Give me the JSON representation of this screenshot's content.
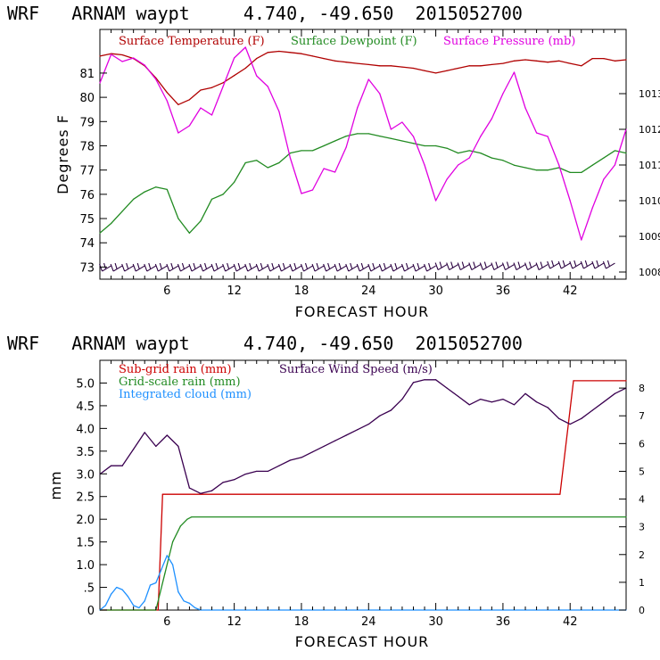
{
  "chart_data": [
    {
      "type": "line",
      "title": "WRF   ARNAM waypt     4.740, -49.650  2015052700",
      "xlabel": "FORECAST HOUR",
      "ylabel": "Degrees F",
      "xlim": [
        0,
        47
      ],
      "xticks": [
        6,
        12,
        18,
        24,
        30,
        36,
        42
      ],
      "ylim": [
        72.5,
        82.8
      ],
      "yticks": [
        73,
        74,
        75,
        76,
        77,
        78,
        79,
        80,
        81
      ],
      "y2label": "Surface Pressure (mb)",
      "y2lim": [
        1007.8,
        1014.8
      ],
      "y2ticks": [
        1008,
        1009,
        1010,
        1011,
        1012,
        1013
      ],
      "legend": [
        "Surface Temperature (F)",
        "Surface Dewpoint (F)",
        "Surface Pressure (mb)"
      ],
      "series": [
        {
          "name": "Surface Temperature (F)",
          "color": "#b00000",
          "axis": "left",
          "x": [
            0,
            1,
            2,
            3,
            4,
            5,
            6,
            7,
            8,
            9,
            10,
            11,
            12,
            13,
            14,
            15,
            16,
            17,
            18,
            19,
            20,
            21,
            22,
            23,
            24,
            25,
            26,
            27,
            28,
            29,
            30,
            31,
            32,
            33,
            34,
            35,
            36,
            37,
            38,
            39,
            40,
            41,
            42,
            43,
            44,
            45,
            46,
            47
          ],
          "y": [
            81.7,
            81.8,
            81.75,
            81.6,
            81.3,
            80.8,
            80.2,
            79.7,
            79.9,
            80.3,
            80.4,
            80.6,
            80.9,
            81.2,
            81.6,
            81.85,
            81.9,
            81.85,
            81.8,
            81.7,
            81.6,
            81.5,
            81.45,
            81.4,
            81.35,
            81.3,
            81.3,
            81.25,
            81.2,
            81.1,
            81.0,
            81.1,
            81.2,
            81.3,
            81.3,
            81.35,
            81.4,
            81.5,
            81.55,
            81.5,
            81.45,
            81.5,
            81.4,
            81.3,
            81.6,
            81.6,
            81.5,
            81.55
          ]
        },
        {
          "name": "Surface Dewpoint (F)",
          "color": "#228b22",
          "axis": "left",
          "x": [
            0,
            1,
            2,
            3,
            4,
            5,
            6,
            7,
            8,
            9,
            10,
            11,
            12,
            13,
            14,
            15,
            16,
            17,
            18,
            19,
            20,
            21,
            22,
            23,
            24,
            25,
            26,
            27,
            28,
            29,
            30,
            31,
            32,
            33,
            34,
            35,
            36,
            37,
            38,
            39,
            40,
            41,
            42,
            43,
            44,
            45,
            46,
            47
          ],
          "y": [
            74.4,
            74.8,
            75.3,
            75.8,
            76.1,
            76.3,
            76.2,
            75.0,
            74.4,
            74.9,
            75.8,
            76.0,
            76.5,
            77.3,
            77.4,
            77.1,
            77.3,
            77.7,
            77.8,
            77.8,
            78.0,
            78.2,
            78.4,
            78.5,
            78.5,
            78.4,
            78.3,
            78.2,
            78.1,
            78.0,
            78.0,
            77.9,
            77.7,
            77.8,
            77.7,
            77.5,
            77.4,
            77.2,
            77.1,
            77.0,
            77.0,
            77.1,
            76.9,
            76.9,
            77.2,
            77.5,
            77.8,
            77.7
          ]
        },
        {
          "name": "Surface Pressure (mb)",
          "color": "#e000e0",
          "axis": "right",
          "x": [
            0,
            1,
            2,
            3,
            4,
            5,
            6,
            7,
            8,
            9,
            10,
            11,
            12,
            13,
            14,
            15,
            16,
            17,
            18,
            19,
            20,
            21,
            22,
            23,
            24,
            25,
            26,
            27,
            28,
            29,
            30,
            31,
            32,
            33,
            34,
            35,
            36,
            37,
            38,
            39,
            40,
            41,
            42,
            43,
            44,
            45,
            46,
            47
          ],
          "y": [
            1013.3,
            1014.1,
            1013.9,
            1014.0,
            1013.8,
            1013.4,
            1012.8,
            1011.9,
            1012.1,
            1012.6,
            1012.4,
            1013.2,
            1014.0,
            1014.3,
            1013.5,
            1013.2,
            1012.5,
            1011.2,
            1010.2,
            1010.3,
            1010.9,
            1010.8,
            1011.5,
            1012.6,
            1013.4,
            1013.0,
            1012.0,
            1012.2,
            1011.8,
            1011.0,
            1010.0,
            1010.6,
            1011.0,
            1011.2,
            1011.8,
            1012.3,
            1013.0,
            1013.6,
            1012.6,
            1011.9,
            1011.8,
            1011.0,
            1010.0,
            1008.9,
            1009.8,
            1010.6,
            1011.0,
            1012.0
          ]
        }
      ],
      "wind_barbs": "row of wind barbs along the bottom of the panel"
    },
    {
      "type": "line",
      "title": "WRF   ARNAM waypt     4.740, -49.650  2015052700",
      "xlabel": "FORECAST HOUR",
      "ylabel": "mm",
      "xlim": [
        0,
        47
      ],
      "xticks": [
        6,
        12,
        18,
        24,
        30,
        36,
        42
      ],
      "ylim": [
        0,
        5.5
      ],
      "yticks": [
        0,
        0.5,
        1.0,
        1.5,
        2.0,
        2.5,
        3.0,
        3.5,
        4.0,
        4.5,
        5.0
      ],
      "ytick_labels": [
        "0",
        ".5",
        "1.0",
        "1.5",
        "2.0",
        "2.5",
        "3.0",
        "3.5",
        "4.0",
        "4.5",
        "5.0"
      ],
      "y2label": "Surface Wind Speed (m/s)",
      "y2lim": [
        0,
        9
      ],
      "y2ticks": [
        0,
        1,
        2,
        3,
        4,
        5,
        6,
        7,
        8
      ],
      "legend": [
        "Sub-grid rain (mm)",
        "Grid-scale rain (mm)",
        "Integrated cloud (mm)",
        "Surface Wind Speed (m/s)"
      ],
      "series": [
        {
          "name": "Sub-grid rain (mm)",
          "color": "#cc0000",
          "axis": "left",
          "x": [
            0,
            5.2,
            5.6,
            41.1,
            42.3,
            47
          ],
          "y": [
            0,
            0,
            2.55,
            2.55,
            5.05,
            5.05
          ]
        },
        {
          "name": "Grid-scale rain (mm)",
          "color": "#228b22",
          "axis": "left",
          "x": [
            0,
            5.0,
            5.8,
            6.5,
            7.2,
            7.8,
            8.2,
            47
          ],
          "y": [
            0,
            0,
            0.8,
            1.5,
            1.85,
            2.0,
            2.05,
            2.05
          ]
        },
        {
          "name": "Integrated cloud (mm)",
          "color": "#1e90ff",
          "axis": "left",
          "x": [
            0,
            0.5,
            1.0,
            1.5,
            2.0,
            2.5,
            3.0,
            3.5,
            4.0,
            4.5,
            5.0,
            5.5,
            6.0,
            6.5,
            7.0,
            7.5,
            8.0,
            8.5,
            9.0,
            47
          ],
          "y": [
            0,
            0.1,
            0.35,
            0.5,
            0.45,
            0.3,
            0.1,
            0.05,
            0.2,
            0.55,
            0.6,
            0.9,
            1.2,
            1.0,
            0.4,
            0.2,
            0.15,
            0.05,
            0,
            0
          ]
        },
        {
          "name": "Surface Wind Speed (m/s)",
          "color": "#3a0050",
          "axis": "right",
          "x": [
            0,
            1,
            2,
            3,
            4,
            5,
            6,
            7,
            8,
            9,
            10,
            11,
            12,
            13,
            14,
            15,
            16,
            17,
            18,
            19,
            20,
            21,
            22,
            23,
            24,
            25,
            26,
            27,
            28,
            29,
            30,
            31,
            32,
            33,
            34,
            35,
            36,
            37,
            38,
            39,
            40,
            41,
            42,
            43,
            44,
            45,
            46,
            47
          ],
          "y": [
            4.9,
            5.2,
            5.2,
            5.8,
            6.4,
            5.9,
            6.3,
            5.9,
            4.4,
            4.2,
            4.3,
            4.6,
            4.7,
            4.9,
            5.0,
            5.0,
            5.2,
            5.4,
            5.5,
            5.7,
            5.9,
            6.1,
            6.3,
            6.5,
            6.7,
            7.0,
            7.2,
            7.6,
            8.2,
            8.3,
            8.3,
            8.0,
            7.7,
            7.4,
            7.6,
            7.5,
            7.6,
            7.4,
            7.8,
            7.5,
            7.3,
            6.9,
            6.7,
            6.9,
            7.2,
            7.5,
            7.8,
            8.0
          ]
        }
      ]
    }
  ]
}
